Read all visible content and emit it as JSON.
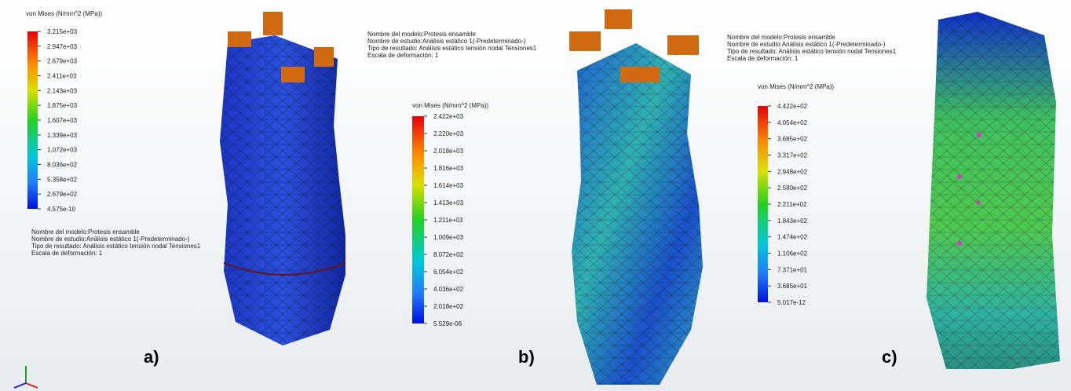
{
  "panels": [
    {
      "legend_title": "von Mises (N/mm^2 (MPa))",
      "legend_labels": [
        "3.215e+03",
        "2.947e+03",
        "2.679e+03",
        "2.411e+03",
        "2.143e+03",
        "1.875e+03",
        "1.607e+03",
        "1.339e+03",
        "1.072e+03",
        "8.036e+02",
        "5.358e+02",
        "2.679e+02",
        "4.575e-10"
      ],
      "info": [
        "Nombre del modelo:Protesis ensamble",
        "Nombre de estudio:Análisis estático 1(-Predeterminado-)",
        "Tipo de resultado: Análisis estático tensión nodal Tensiones1",
        "Escala de deformación: 1"
      ],
      "label": "a)"
    },
    {
      "legend_title": "von Mises (N/mm^2 (MPa))",
      "legend_labels": [
        "2.422e+03",
        "2.220e+03",
        "2.018e+03",
        "1.816e+03",
        "1.614e+03",
        "1.413e+03",
        "1.211e+03",
        "1.009e+03",
        "8.072e+02",
        "6.054e+02",
        "4.036e+02",
        "2.018e+02",
        "5.529e-06"
      ],
      "info": [
        "Nombre del modelo:Protesis ensamble",
        "Nombre de estudio:Análisis estático 1(-Predeterminado-)",
        "Tipo de resultado: Análisis estático tensión nodal Tensiones1",
        "Escala de deformación: 1"
      ],
      "label": "b)"
    },
    {
      "legend_title": "von Mises (N/mm^2 (MPa))",
      "legend_labels": [
        "4.422e+02",
        "4.054e+02",
        "3.685e+02",
        "3.317e+02",
        "2.948e+02",
        "2.580e+02",
        "2.211e+02",
        "1.843e+02",
        "1.474e+02",
        "1.106e+02",
        "7.371e+01",
        "3.685e+01",
        "5.017e-12"
      ],
      "info": [
        "Nombre del modelo:Protesis ensamble",
        "Nombre de estudio:Análisis estático 1(-Predeterminado-)",
        "Tipo de resultado: Análisis estático tensión nodal Tensiones1",
        "Escala de deformación: 1"
      ],
      "label": "c)"
    }
  ]
}
